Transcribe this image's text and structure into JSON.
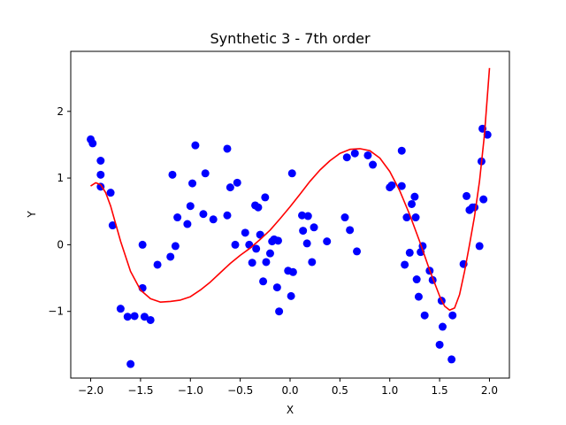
{
  "chart_data": {
    "type": "scatter",
    "title": "Synthetic 3 - 7th order",
    "xlabel": "X",
    "ylabel": "Y",
    "xlim": [
      -2.2,
      2.2
    ],
    "ylim": [
      -2.0,
      2.9
    ],
    "xticks": [
      -2.0,
      -1.5,
      -1.0,
      -0.5,
      0.0,
      0.5,
      1.0,
      1.5,
      2.0
    ],
    "xtick_labels": [
      "−2.0",
      "−1.5",
      "−1.0",
      "−0.5",
      "0.0",
      "0.5",
      "1.0",
      "1.5",
      "2.0"
    ],
    "yticks": [
      -1,
      0,
      1,
      2
    ],
    "ytick_labels": [
      "−1",
      "0",
      "1",
      "2"
    ],
    "grid": false,
    "legend": "none",
    "series": [
      {
        "kind": "scatter",
        "color": "#0000ff",
        "x": [
          -2.0,
          -1.98,
          -1.9,
          -1.9,
          -1.9,
          -1.8,
          -1.78,
          -1.7,
          -1.63,
          -1.6,
          -1.56,
          -1.48,
          -1.48,
          -1.46,
          -1.4,
          -1.33,
          -1.2,
          -1.18,
          -1.15,
          -1.13,
          -1.03,
          -1.0,
          -0.98,
          -0.95,
          -0.87,
          -0.85,
          -0.77,
          -0.63,
          -0.63,
          -0.6,
          -0.55,
          -0.53,
          -0.45,
          -0.41,
          -0.38,
          -0.35,
          -0.34,
          -0.32,
          -0.3,
          -0.27,
          -0.25,
          -0.24,
          -0.2,
          -0.18,
          -0.16,
          -0.13,
          -0.11,
          -0.12,
          -0.02,
          0.01,
          0.02,
          0.03,
          0.12,
          0.13,
          0.17,
          0.18,
          0.22,
          0.24,
          0.37,
          0.55,
          0.57,
          0.6,
          0.65,
          0.67,
          0.78,
          0.83,
          1.0,
          1.02,
          1.12,
          1.12,
          1.15,
          1.17,
          1.2,
          1.22,
          1.25,
          1.26,
          1.27,
          1.29,
          1.31,
          1.33,
          1.35,
          1.4,
          1.43,
          1.5,
          1.52,
          1.53,
          1.62,
          1.63,
          1.74,
          1.77,
          1.8,
          1.83,
          1.85,
          1.9,
          1.92,
          1.93,
          1.94,
          1.98
        ],
        "y": [
          1.58,
          1.52,
          1.26,
          1.05,
          0.87,
          0.78,
          0.29,
          -0.96,
          -1.08,
          -1.79,
          -1.07,
          0.0,
          -0.65,
          -1.08,
          -1.13,
          -0.3,
          -0.18,
          1.05,
          -0.02,
          0.41,
          0.31,
          0.58,
          0.92,
          1.49,
          0.46,
          1.07,
          0.38,
          1.44,
          0.44,
          0.86,
          0.0,
          0.93,
          0.18,
          0.0,
          -0.27,
          0.59,
          -0.06,
          0.56,
          0.15,
          -0.55,
          0.71,
          -0.26,
          -0.13,
          0.05,
          0.08,
          -0.64,
          -1.0,
          0.06,
          -0.39,
          -0.77,
          1.07,
          -0.41,
          0.44,
          0.21,
          0.02,
          0.43,
          -0.26,
          0.26,
          0.05,
          0.41,
          1.31,
          0.22,
          1.37,
          -0.1,
          1.34,
          1.2,
          0.86,
          0.89,
          0.88,
          1.41,
          -0.3,
          0.41,
          -0.12,
          0.61,
          0.72,
          0.41,
          -0.52,
          -0.78,
          -0.11,
          -0.02,
          -1.06,
          -0.39,
          -0.53,
          -1.5,
          -0.84,
          -1.23,
          -1.72,
          -1.06,
          -0.29,
          0.73,
          0.52,
          0.56,
          0.56,
          -0.02,
          1.25,
          1.74,
          0.68,
          1.65
        ]
      },
      {
        "kind": "line",
        "color": "#ff0000",
        "x": [
          -2.0,
          -1.95,
          -1.9,
          -1.85,
          -1.8,
          -1.7,
          -1.6,
          -1.5,
          -1.4,
          -1.3,
          -1.2,
          -1.1,
          -1.0,
          -0.9,
          -0.8,
          -0.7,
          -0.6,
          -0.5,
          -0.4,
          -0.3,
          -0.2,
          -0.1,
          0.0,
          0.1,
          0.2,
          0.3,
          0.4,
          0.5,
          0.6,
          0.7,
          0.8,
          0.9,
          1.0,
          1.1,
          1.2,
          1.3,
          1.4,
          1.5,
          1.55,
          1.6,
          1.65,
          1.7,
          1.75,
          1.8,
          1.85,
          1.9,
          1.95,
          2.0
        ],
        "y": [
          0.88,
          0.93,
          0.9,
          0.78,
          0.58,
          0.05,
          -0.4,
          -0.68,
          -0.81,
          -0.86,
          -0.85,
          -0.83,
          -0.78,
          -0.68,
          -0.56,
          -0.42,
          -0.28,
          -0.16,
          -0.05,
          0.08,
          0.22,
          0.39,
          0.57,
          0.76,
          0.95,
          1.12,
          1.26,
          1.37,
          1.43,
          1.44,
          1.41,
          1.3,
          1.1,
          0.81,
          0.45,
          0.05,
          -0.38,
          -0.77,
          -0.92,
          -0.98,
          -0.95,
          -0.75,
          -0.4,
          0.0,
          0.42,
          0.95,
          1.65,
          2.65
        ]
      }
    ]
  }
}
